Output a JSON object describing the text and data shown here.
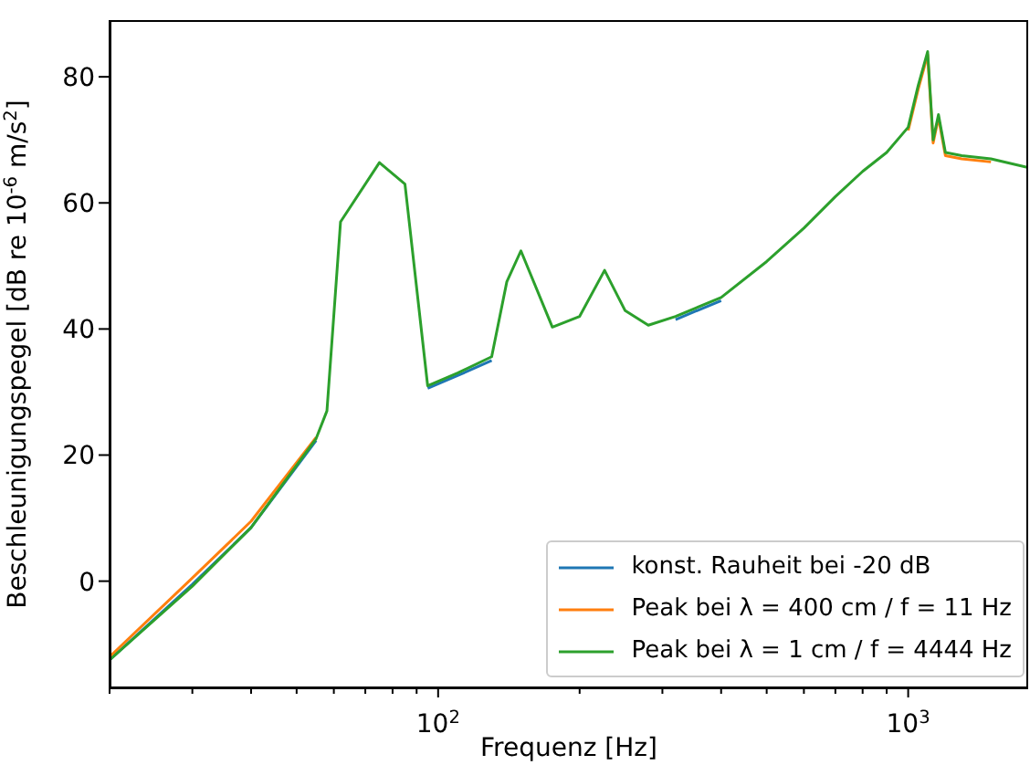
{
  "chart_data": {
    "type": "line",
    "xlabel": "Frequenz [Hz]",
    "ylabel": "Beschleunigungspegel [dB re 10$^{-6}$ m/s$^{2}$]",
    "x": [
      20,
      30,
      40,
      55,
      58,
      62,
      75,
      85,
      95,
      110,
      130,
      140,
      150,
      175,
      200,
      226,
      250,
      280,
      320,
      400,
      500,
      600,
      700,
      800,
      900,
      1000,
      1050,
      1100,
      1130,
      1160,
      1200,
      1300,
      1500,
      1800
    ],
    "series": [
      {
        "name": "konst. Rauheit bei -20 dB",
        "color": "#1f77b4",
        "values": [
          -12.5,
          -0.5,
          8.5,
          22.3,
          null,
          null,
          null,
          null,
          30.6,
          32.6,
          35,
          null,
          null,
          null,
          null,
          null,
          null,
          null,
          41.5,
          44.5,
          null,
          null,
          null,
          null,
          null,
          null,
          null,
          null,
          null,
          null,
          null,
          null,
          null,
          null
        ]
      },
      {
        "name": "Peak bei λ = 400 cm / f = 11 Hz",
        "color": "#ff7f0e",
        "values": [
          -12,
          0.5,
          9.5,
          22.8,
          null,
          null,
          null,
          null,
          null,
          null,
          null,
          null,
          null,
          null,
          null,
          null,
          null,
          null,
          null,
          null,
          null,
          null,
          null,
          null,
          null,
          71.5,
          78,
          83.5,
          69.5,
          73.5,
          67.5,
          67,
          66.5,
          null
        ]
      },
      {
        "name": "Peak bei λ = 1 cm / f = 4444 Hz",
        "color": "#2ca02c",
        "values": [
          -12.5,
          -0.8,
          8.5,
          22.6,
          27,
          57,
          66.4,
          63,
          31,
          33,
          35.6,
          47.5,
          52.4,
          40.3,
          42,
          49.3,
          42.9,
          40.6,
          42,
          45,
          50.7,
          56,
          61,
          65,
          68,
          72,
          78.6,
          84,
          70,
          74,
          68,
          67.5,
          67,
          65.6
        ]
      }
    ],
    "xlim": [
      20,
      1800
    ],
    "log": "x",
    "xticks": [
      {
        "value": 20,
        "label": null
      },
      {
        "value": 30,
        "label": null
      },
      {
        "value": 40,
        "label": null
      },
      {
        "value": 50,
        "label": null
      },
      {
        "value": 60,
        "label": null
      },
      {
        "value": 70,
        "label": null
      },
      {
        "value": 80,
        "label": null
      },
      {
        "value": 90,
        "label": null
      },
      {
        "value": 100,
        "label": "10$^{2}$"
      },
      {
        "value": 200,
        "label": null
      },
      {
        "value": 300,
        "label": null
      },
      {
        "value": 400,
        "label": null
      },
      {
        "value": 500,
        "label": null
      },
      {
        "value": 600,
        "label": null
      },
      {
        "value": 700,
        "label": null
      },
      {
        "value": 800,
        "label": null
      },
      {
        "value": 900,
        "label": null
      },
      {
        "value": 1000,
        "label": "10$^{3}$"
      }
    ],
    "ylim": [
      -17,
      89
    ],
    "yticks": [
      0,
      20,
      40,
      60,
      80
    ],
    "grid": false,
    "legend": "bottom right",
    "marker": "none",
    "line_style": "solid"
  }
}
